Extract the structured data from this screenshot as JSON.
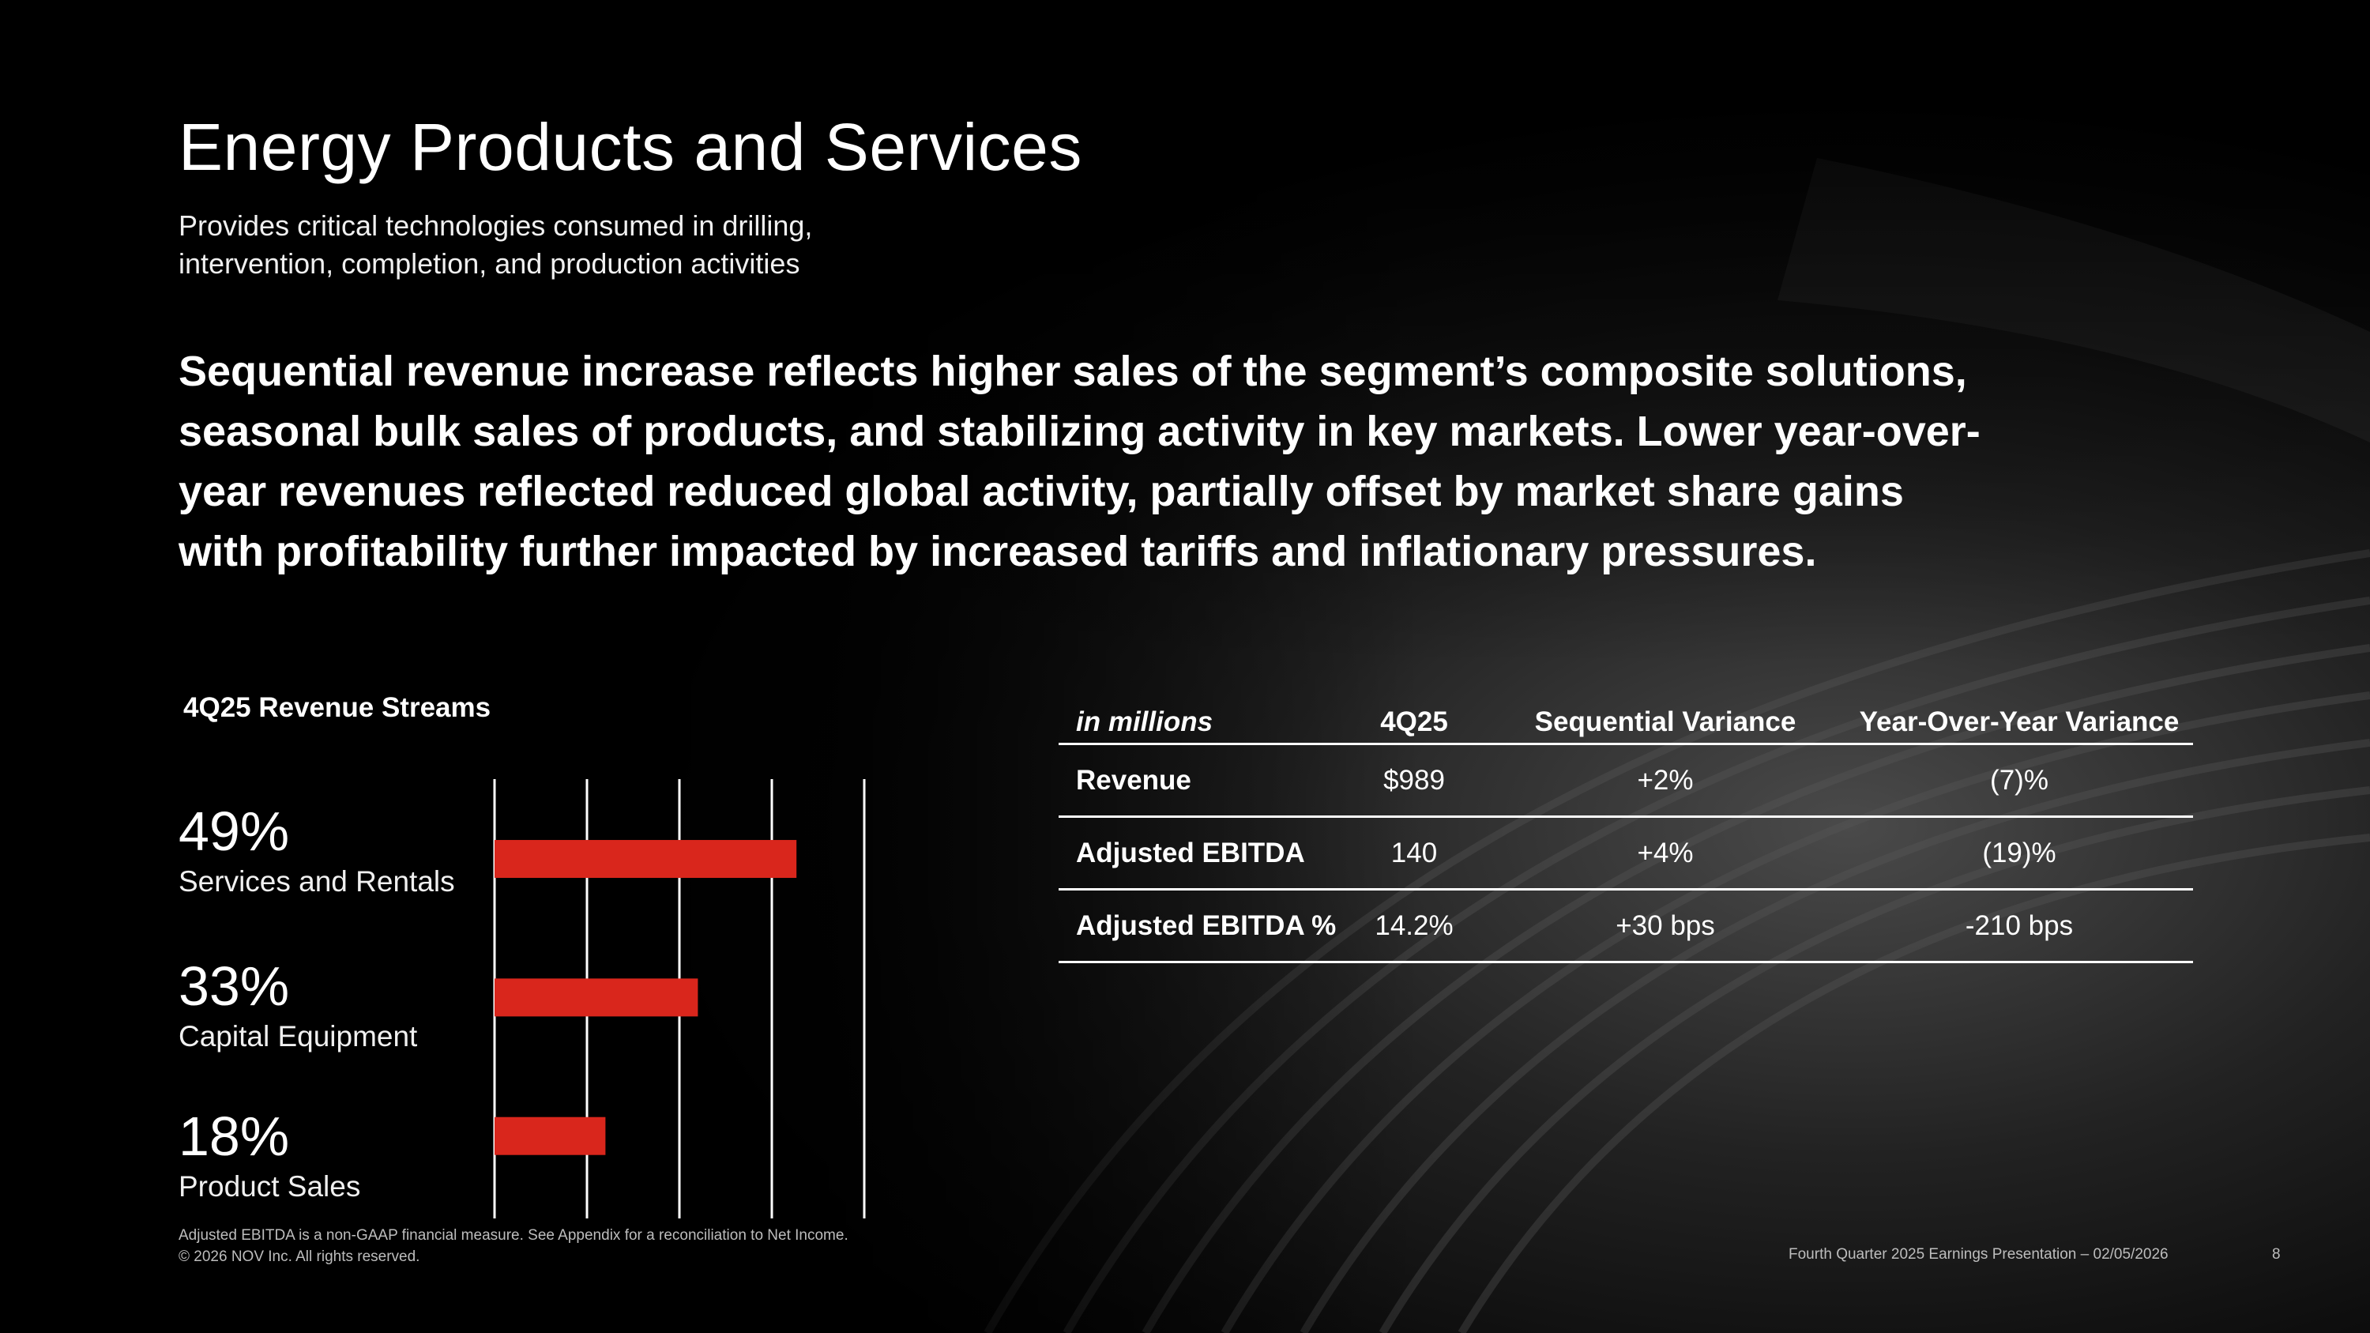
{
  "slide": {
    "title": "Energy Products and Services",
    "subtitle_line1": "Provides critical technologies consumed in drilling,",
    "subtitle_line2": "intervention, completion, and production activities",
    "headline": [
      "Sequential revenue increase reflects higher sales of the segment’s composite solutions,",
      "seasonal bulk sales of products, and stabilizing activity in key markets. Lower year-over-",
      "year revenues reflected reduced global activity, partially offset by market share gains",
      "with profitability further impacted by increased tariffs and inflationary pressures."
    ]
  },
  "revenue_streams": {
    "title": "4Q25 Revenue Streams",
    "items": [
      {
        "pct": "49%",
        "label": "Services and Rentals"
      },
      {
        "pct": "33%",
        "label": "Capital Equipment"
      },
      {
        "pct": "18%",
        "label": "Product Sales"
      }
    ]
  },
  "chart_data": {
    "type": "bar",
    "orientation": "horizontal",
    "categories": [
      "Services and Rentals",
      "Capital Equipment",
      "Product Sales"
    ],
    "values": [
      49,
      33,
      18
    ],
    "title": "4Q25 Revenue Streams",
    "xlim": [
      0,
      60
    ],
    "grid": true,
    "bar_color": "#d9261c"
  },
  "table": {
    "headers": [
      "in millions",
      "4Q25",
      "Sequential Variance",
      "Year-Over-Year Variance"
    ],
    "rows": [
      [
        "Revenue",
        "$989",
        "+2%",
        "(7)%"
      ],
      [
        "Adjusted EBITDA",
        "140",
        "+4%",
        "(19)%"
      ],
      [
        "Adjusted EBITDA %",
        "14.2%",
        "+30 bps",
        "-210 bps"
      ]
    ]
  },
  "footer": {
    "note_line1": "Adjusted EBITDA is a non-GAAP financial measure. See Appendix for a reconciliation to Net Income.",
    "note_line2": "© 2026 NOV Inc. All rights reserved.",
    "presentation": "Fourth Quarter 2025 Earnings Presentation – 02/05/2026",
    "page_number": "8"
  },
  "colors": {
    "background": "#000000",
    "text": "#ffffff",
    "accent_red": "#d9261c"
  }
}
